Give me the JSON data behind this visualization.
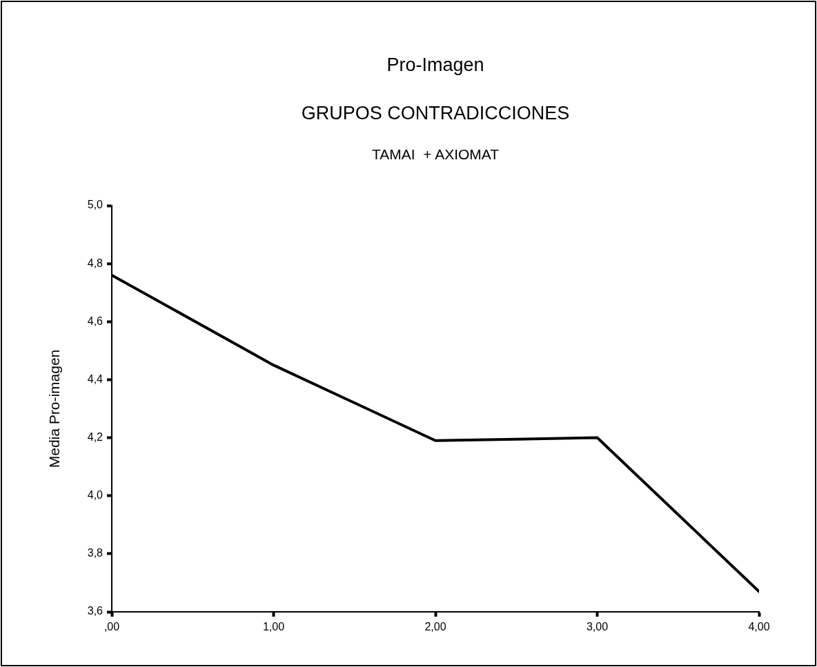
{
  "chart_data": {
    "type": "line",
    "title": "Pro-Imagen",
    "subtitle": "GRUPOS CONTRADICCIONES",
    "annotations": [
      "TAMAI  + AXIOMAT"
    ],
    "ylabel": "Media Pro-imagen",
    "x": [
      0,
      1,
      2,
      3,
      4
    ],
    "series": [
      {
        "color": "#000000",
        "values": [
          4.76,
          4.45,
          4.19,
          4.2,
          3.67
        ]
      }
    ],
    "xlim": [
      0,
      4
    ],
    "xticks": [
      {
        "value": 0,
        "label": ",00"
      },
      {
        "value": 1,
        "label": "1,00"
      },
      {
        "value": 2,
        "label": "2,00"
      },
      {
        "value": 3,
        "label": "3,00"
      },
      {
        "value": 4,
        "label": "4,00"
      }
    ],
    "ylim": [
      3.6,
      5.0
    ],
    "yticks": [
      {
        "value": 3.6,
        "label": "3,6"
      },
      {
        "value": 3.8,
        "label": "3,8"
      },
      {
        "value": 4.0,
        "label": "4,0"
      },
      {
        "value": 4.2,
        "label": "4,2"
      },
      {
        "value": 4.4,
        "label": "4,4"
      },
      {
        "value": 4.6,
        "label": "4,6"
      },
      {
        "value": 4.8,
        "label": "4,8"
      },
      {
        "value": 5.0,
        "label": "5,0"
      }
    ],
    "grid": false,
    "legend": false,
    "marker": "none",
    "line_style": "solid"
  }
}
